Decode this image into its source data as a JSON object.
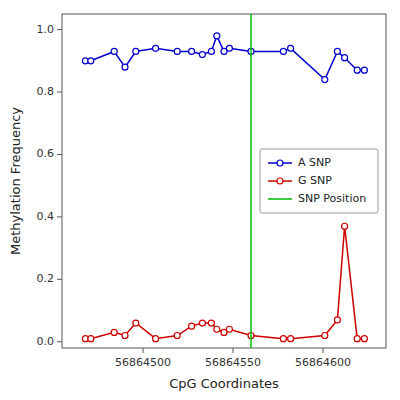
{
  "chart_data": {
    "type": "line",
    "xlabel": "CpG Coordinates",
    "ylabel": "Methylation Frequency",
    "x": [
      56864468,
      56864471,
      56864484,
      56864490,
      56864496,
      56864507,
      56864519,
      56864527,
      56864533,
      56864538,
      56864541,
      56864545,
      56864548,
      56864560,
      56864578,
      56864582,
      56864601,
      56864608,
      56864612,
      56864619,
      56864623
    ],
    "series": [
      {
        "name": "A SNP",
        "color": "#0000cc",
        "marker": "circle",
        "values": [
          0.9,
          0.9,
          0.93,
          0.88,
          0.93,
          0.94,
          0.93,
          0.93,
          0.92,
          0.93,
          0.98,
          0.93,
          0.94,
          0.93,
          0.93,
          0.94,
          0.84,
          0.93,
          0.91,
          0.87,
          0.87
        ]
      },
      {
        "name": "G SNP",
        "color": "#cc0000",
        "marker": "circle",
        "values": [
          0.01,
          0.01,
          0.03,
          0.02,
          0.06,
          0.01,
          0.02,
          0.05,
          0.06,
          0.06,
          0.04,
          0.03,
          0.04,
          0.02,
          0.01,
          0.01,
          0.02,
          0.07,
          0.37,
          0.01,
          0.01
        ]
      },
      {
        "name": "SNP Position",
        "type": "vline",
        "color": "#00bb00",
        "x": 56864560
      }
    ],
    "xlim": [
      56864455,
      56864635
    ],
    "ylim": [
      -0.02,
      1.05
    ],
    "xticks": [
      56864500,
      56864550,
      56864600
    ],
    "yticks": [
      {
        "value": 0,
        "label": "0.0"
      },
      0.2,
      0.4,
      0.6,
      0.8,
      {
        "value": 1,
        "label": "1.0"
      }
    ],
    "grid": false,
    "legend": "right"
  }
}
